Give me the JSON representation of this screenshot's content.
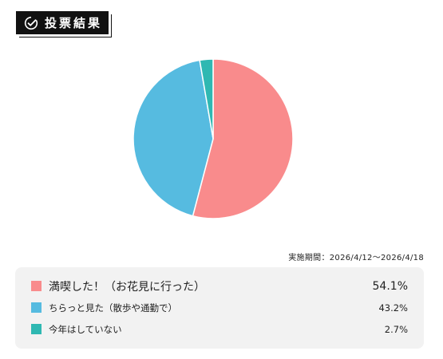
{
  "header": {
    "title": "投票結果",
    "icon": "check-circle-icon"
  },
  "period": "実施期間：2026/4/12～2026/4/18",
  "chart_data": {
    "type": "pie",
    "start_angle_deg": 0,
    "direction": "clockwise",
    "categories": [
      "満喫した！（お花見に行った）",
      "ちらっと見た（散歩や通勤で）",
      "今年はしていない"
    ],
    "values": [
      54.1,
      43.2,
      2.7
    ],
    "labels": [
      "54.1%",
      "43.2%",
      "2.7%"
    ],
    "colors": [
      "#f98b8c",
      "#56bbe0",
      "#2fb8b2"
    ]
  }
}
